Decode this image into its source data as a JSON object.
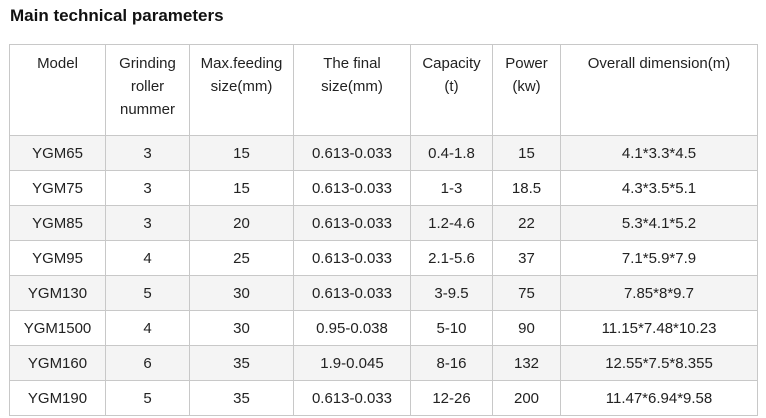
{
  "title": "Main technical parameters",
  "table": {
    "headers": [
      {
        "lines": [
          "Model"
        ]
      },
      {
        "lines": [
          "Grinding",
          "roller",
          "nummer"
        ]
      },
      {
        "lines": [
          "Max.feeding",
          "size(mm)"
        ]
      },
      {
        "lines": [
          "The final",
          "size(mm)"
        ]
      },
      {
        "lines": [
          "Capacity",
          "(t)"
        ]
      },
      {
        "lines": [
          "Power",
          "(kw)"
        ]
      },
      {
        "lines": [
          "Overall dimension(m)"
        ]
      }
    ],
    "rows": [
      [
        "YGM65",
        "3",
        "15",
        "0.613-0.033",
        "0.4-1.8",
        "15",
        "4.1*3.3*4.5"
      ],
      [
        "YGM75",
        "3",
        "15",
        "0.613-0.033",
        "1-3",
        "18.5",
        "4.3*3.5*5.1"
      ],
      [
        "YGM85",
        "3",
        "20",
        "0.613-0.033",
        "1.2-4.6",
        "22",
        "5.3*4.1*5.2"
      ],
      [
        "YGM95",
        "4",
        "25",
        "0.613-0.033",
        "2.1-5.6",
        "37",
        "7.1*5.9*7.9"
      ],
      [
        "YGM130",
        "5",
        "30",
        "0.613-0.033",
        "3-9.5",
        "75",
        "7.85*8*9.7"
      ],
      [
        "YGM1500",
        "4",
        "30",
        "0.95-0.038",
        "5-10",
        "90",
        "11.15*7.48*10.23"
      ],
      [
        "YGM160",
        "6",
        "35",
        "1.9-0.045",
        "8-16",
        "132",
        "12.55*7.5*8.355"
      ],
      [
        "YGM190",
        "5",
        "35",
        "0.613-0.033",
        "12-26",
        "200",
        "11.47*6.94*9.58"
      ]
    ]
  }
}
